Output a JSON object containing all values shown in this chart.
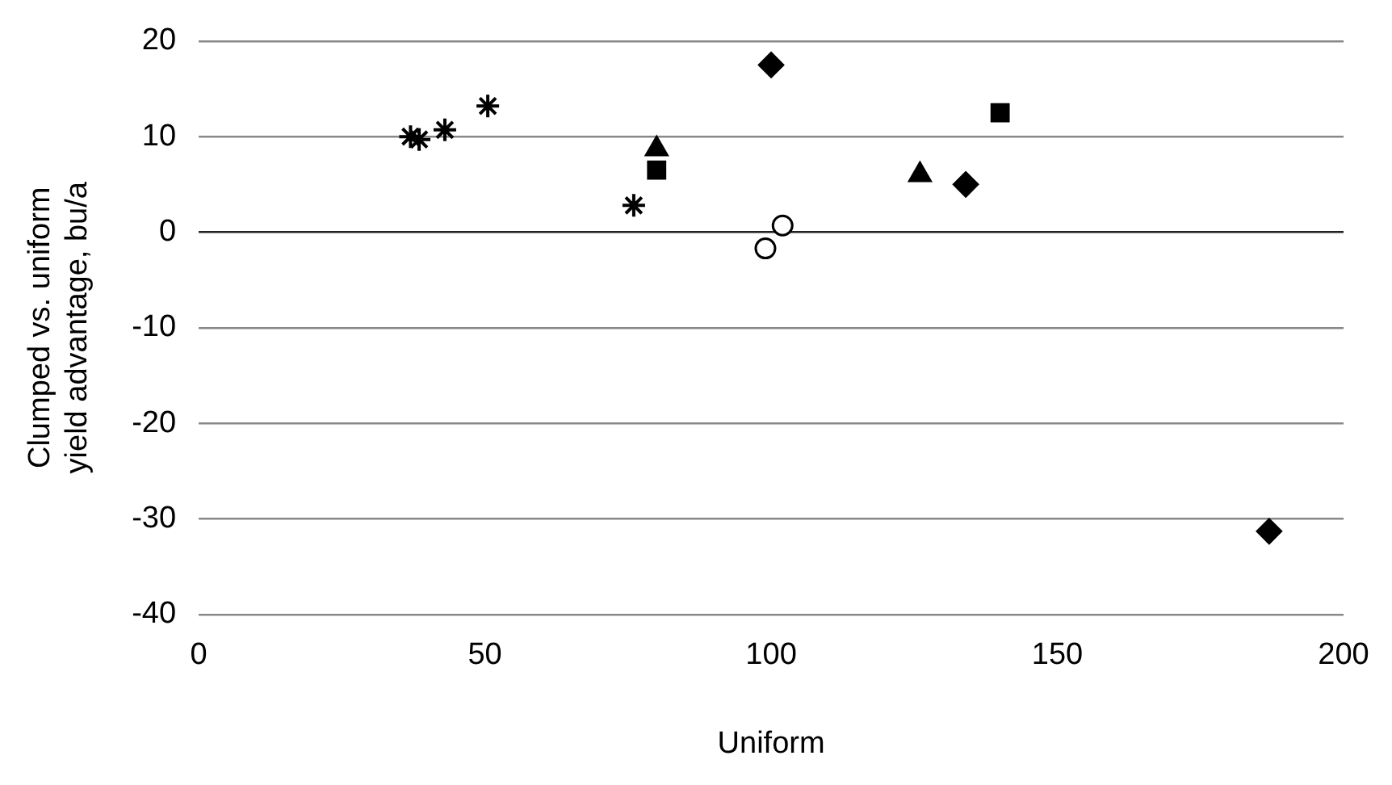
{
  "chart_data": {
    "type": "scatter",
    "xlabel": "Uniform",
    "ylabel": "Clumped vs. uniform yield advantage, bu/a",
    "xlim": [
      0,
      200
    ],
    "xticks": [
      0,
      50,
      100,
      150,
      200
    ],
    "ylim": [
      -40,
      20
    ],
    "yticks": [
      -40,
      -30,
      -20,
      -10,
      0,
      10,
      20
    ],
    "grid": "y",
    "legend": false,
    "series": [
      {
        "color": "#000000",
        "marker": "diamond",
        "x": [
          100,
          134,
          187
        ],
        "values": [
          17.5,
          5,
          -31.3
        ]
      },
      {
        "color": "#000000",
        "marker": "square",
        "x": [
          80,
          140
        ],
        "values": [
          6.5,
          12.5
        ]
      },
      {
        "color": "#000000",
        "marker": "triangle",
        "x": [
          80,
          126
        ],
        "values": [
          8.7,
          6
        ]
      },
      {
        "color": "#000000",
        "marker": "circle",
        "x": [
          99,
          102
        ],
        "values": [
          -1.7,
          0.7
        ]
      },
      {
        "color": "#000000",
        "marker": "cross",
        "x": [
          37,
          38.5,
          43,
          50.5,
          76
        ],
        "values": [
          10,
          9.7,
          10.7,
          13.2,
          2.8
        ]
      }
    ]
  }
}
